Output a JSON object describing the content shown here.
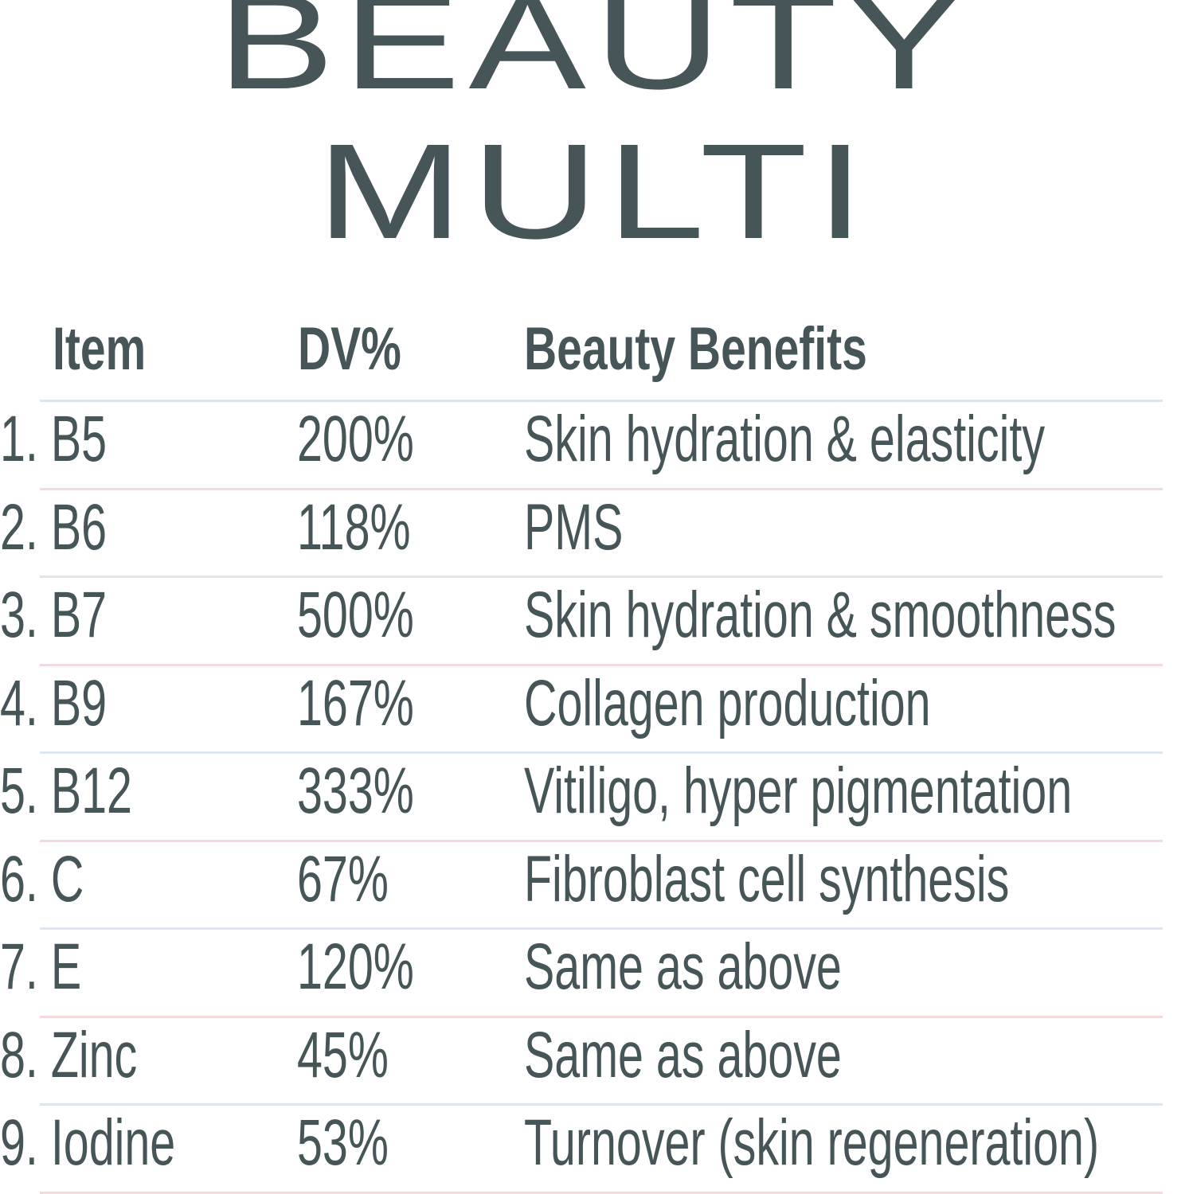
{
  "title": {
    "line1": "BEAUTY",
    "line2": "MULTI"
  },
  "colors": {
    "text": "#465557",
    "divider_blue": "#dde6ef",
    "divider_pink": "#f5d9dc"
  },
  "table": {
    "headers": {
      "item": "Item",
      "dv": "DV%",
      "benefits": "Beauty Benefits"
    },
    "rows": [
      {
        "item": "1. B5",
        "dv": "200%",
        "benefit": "Skin hydration & elasticity"
      },
      {
        "item": "2. B6",
        "dv": "118%",
        "benefit": "PMS"
      },
      {
        "item": "3. B7",
        "dv": "500%",
        "benefit": "Skin hydration & smoothness"
      },
      {
        "item": "4. B9",
        "dv": "167%",
        "benefit": "Collagen production"
      },
      {
        "item": "5. B12",
        "dv": "333%",
        "benefit": "Vitiligo, hyper pigmentation"
      },
      {
        "item": "6. C",
        "dv": "67%",
        "benefit": "Fibroblast cell synthesis"
      },
      {
        "item": "7. E",
        "dv": "120%",
        "benefit": "Same as above"
      },
      {
        "item": "8. Zinc",
        "dv": "45%",
        "benefit": "Same as above"
      },
      {
        "item": "9. Iodine",
        "dv": "53%",
        "benefit": "Turnover (skin regeneration)"
      }
    ]
  }
}
